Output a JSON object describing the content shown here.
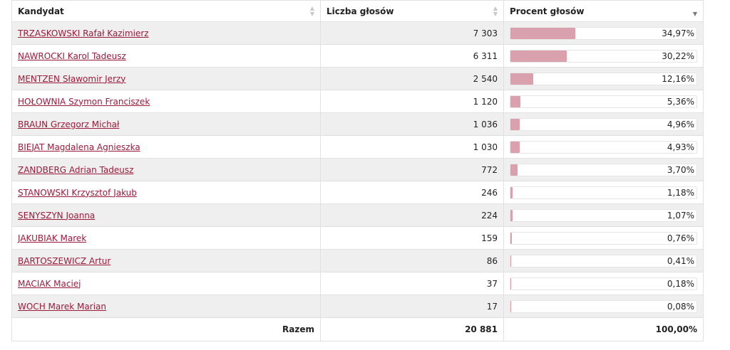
{
  "table": {
    "columns": {
      "candidate": "Kandydat",
      "votes": "Liczba głosów",
      "percent": "Procent głosów"
    },
    "sort": {
      "column": "percent",
      "direction": "descending"
    },
    "bar_color": "#d9a0ad",
    "link_color": "#9b1b3d",
    "rows": [
      {
        "name": "TRZASKOWSKI Rafał Kazimierz",
        "votes": "7 303",
        "percent": "34,97%",
        "share": 34.97
      },
      {
        "name": "NAWROCKI Karol Tadeusz",
        "votes": "6 311",
        "percent": "30,22%",
        "share": 30.22
      },
      {
        "name": "MENTZEN Sławomir Jerzy",
        "votes": "2 540",
        "percent": "12,16%",
        "share": 12.16
      },
      {
        "name": "HOŁOWNIA Szymon Franciszek",
        "votes": "1 120",
        "percent": "5,36%",
        "share": 5.36
      },
      {
        "name": "BRAUN Grzegorz Michał",
        "votes": "1 036",
        "percent": "4,96%",
        "share": 4.96
      },
      {
        "name": "BIEJAT Magdalena Agnieszka",
        "votes": "1 030",
        "percent": "4,93%",
        "share": 4.93
      },
      {
        "name": "ZANDBERG Adrian Tadeusz",
        "votes": "772",
        "percent": "3,70%",
        "share": 3.7
      },
      {
        "name": "STANOWSKI Krzysztof Jakub",
        "votes": "246",
        "percent": "1,18%",
        "share": 1.18
      },
      {
        "name": "SENYSZYN Joanna",
        "votes": "224",
        "percent": "1,07%",
        "share": 1.07
      },
      {
        "name": "JAKUBIAK Marek",
        "votes": "159",
        "percent": "0,76%",
        "share": 0.76
      },
      {
        "name": "BARTOSZEWICZ Artur",
        "votes": "86",
        "percent": "0,41%",
        "share": 0.41
      },
      {
        "name": "MACIAK Maciej",
        "votes": "37",
        "percent": "0,18%",
        "share": 0.18
      },
      {
        "name": "WOCH Marek Marian",
        "votes": "17",
        "percent": "0,08%",
        "share": 0.08
      }
    ],
    "total": {
      "label": "Razem",
      "votes": "20 881",
      "percent": "100,00%"
    }
  }
}
